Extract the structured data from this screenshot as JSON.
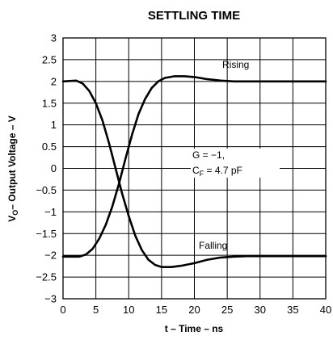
{
  "chart_data": {
    "type": "line",
    "title": "SETTLING TIME",
    "xlabel": "t – Time – ns",
    "ylabel": {
      "main": "V",
      "sub": "O",
      "rest": "– Output Voltage – V"
    },
    "xlim": [
      0,
      40
    ],
    "ylim": [
      -3,
      3
    ],
    "grid": true,
    "x_ticks": [
      "0",
      "5",
      "10",
      "15",
      "20",
      "25",
      "30",
      "35",
      "40"
    ],
    "y_ticks": [
      "3",
      "2.5",
      "2",
      "1.5",
      "1",
      "0.5",
      "0",
      "−0.5",
      "−1",
      "−1.5",
      "−2",
      "−2.5",
      "−3"
    ],
    "series": [
      {
        "name": "Rising",
        "x": [
          0,
          2.5,
          3.5,
          4.5,
          5.5,
          6.5,
          7.5,
          8.5,
          9.5,
          10.5,
          11.5,
          12.5,
          13.5,
          14.5,
          15.5,
          17,
          18.5,
          20,
          22,
          24,
          26,
          28,
          30,
          35,
          40
        ],
        "y": [
          -2.03,
          -2.03,
          -1.98,
          -1.85,
          -1.62,
          -1.3,
          -0.88,
          -0.36,
          0.22,
          0.77,
          1.25,
          1.6,
          1.85,
          2.0,
          2.08,
          2.12,
          2.12,
          2.1,
          2.05,
          2.02,
          2.0,
          2.0,
          2.0,
          2.0,
          2.0
        ]
      },
      {
        "name": "Falling",
        "x": [
          0,
          2,
          3,
          4,
          5,
          6,
          7,
          8,
          9,
          10,
          11,
          12,
          13,
          14,
          15,
          16.5,
          18,
          20,
          22,
          24,
          26,
          28,
          30,
          35,
          40
        ],
        "y": [
          2.0,
          2.02,
          1.95,
          1.78,
          1.5,
          1.1,
          0.58,
          0.0,
          -0.58,
          -1.1,
          -1.55,
          -1.88,
          -2.1,
          -2.22,
          -2.27,
          -2.27,
          -2.24,
          -2.18,
          -2.1,
          -2.05,
          -2.03,
          -2.02,
          -2.02,
          -2.02,
          -2.02
        ]
      }
    ],
    "annotations": {
      "gain": "G = −1,",
      "cf_main": "C",
      "cf_sub": "F",
      "cf_rest": " = 4.7 pF"
    }
  }
}
